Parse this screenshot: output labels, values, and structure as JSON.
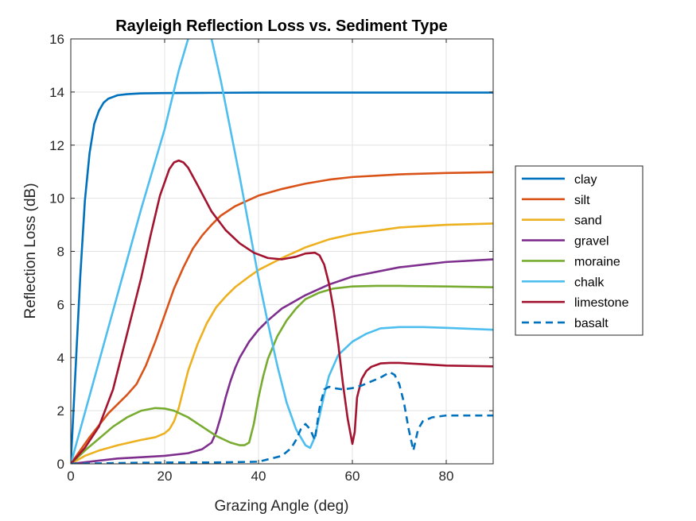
{
  "chart_data": {
    "type": "line",
    "title": "Rayleigh Reflection Loss vs. Sediment Type",
    "xlabel": "Grazing Angle (deg)",
    "ylabel": "Reflection Loss (dB)",
    "xlim": [
      0,
      90
    ],
    "ylim": [
      0,
      16
    ],
    "xticks": [
      0,
      20,
      40,
      60,
      80
    ],
    "yticks": [
      0,
      2,
      4,
      6,
      8,
      10,
      12,
      14,
      16
    ],
    "grid": true,
    "legend_position": "outside-right",
    "series": [
      {
        "name": "clay",
        "color": "#0072BD",
        "dash": "solid",
        "x": [
          0,
          1,
          2,
          3,
          4,
          5,
          6,
          7,
          8,
          10,
          12,
          15,
          20,
          30,
          40,
          60,
          90
        ],
        "y": [
          0,
          3.5,
          7.0,
          9.9,
          11.7,
          12.8,
          13.3,
          13.6,
          13.75,
          13.88,
          13.92,
          13.95,
          13.96,
          13.97,
          13.98,
          13.98,
          13.98
        ]
      },
      {
        "name": "silt",
        "color": "#D95319",
        "dash": "solid",
        "x": [
          0,
          2,
          4,
          6,
          8,
          10,
          12,
          14,
          16,
          18,
          20,
          22,
          24,
          26,
          28,
          30,
          32,
          35,
          40,
          45,
          50,
          55,
          60,
          70,
          80,
          90
        ],
        "y": [
          0,
          0.5,
          1.0,
          1.45,
          1.9,
          2.25,
          2.6,
          3.0,
          3.7,
          4.6,
          5.6,
          6.6,
          7.4,
          8.1,
          8.6,
          9.0,
          9.35,
          9.7,
          10.1,
          10.35,
          10.55,
          10.7,
          10.8,
          10.9,
          10.95,
          10.98
        ]
      },
      {
        "name": "sand",
        "color": "#EDB120",
        "dash": "solid",
        "x": [
          0,
          3,
          6,
          10,
          15,
          18,
          20,
          21,
          22,
          23,
          24,
          25,
          27,
          29,
          31,
          33,
          35,
          38,
          40,
          45,
          50,
          55,
          60,
          70,
          80,
          90
        ],
        "y": [
          0,
          0.3,
          0.5,
          0.7,
          0.9,
          1.0,
          1.15,
          1.3,
          1.6,
          2.1,
          2.8,
          3.5,
          4.5,
          5.3,
          5.9,
          6.3,
          6.65,
          7.05,
          7.3,
          7.75,
          8.15,
          8.45,
          8.65,
          8.9,
          9.0,
          9.05
        ]
      },
      {
        "name": "gravel",
        "color": "#7E2F8E",
        "dash": "solid",
        "x": [
          0,
          5,
          10,
          15,
          20,
          25,
          28,
          30,
          31,
          32,
          33,
          34,
          35,
          36,
          38,
          40,
          42,
          45,
          50,
          55,
          60,
          70,
          80,
          90
        ],
        "y": [
          0,
          0.1,
          0.2,
          0.25,
          0.3,
          0.4,
          0.55,
          0.8,
          1.2,
          1.8,
          2.5,
          3.1,
          3.6,
          4.0,
          4.6,
          5.05,
          5.4,
          5.85,
          6.35,
          6.75,
          7.05,
          7.4,
          7.6,
          7.7
        ]
      },
      {
        "name": "moraine",
        "color": "#77AC30",
        "dash": "solid",
        "x": [
          0,
          3,
          6,
          9,
          12,
          15,
          18,
          20,
          22,
          25,
          28,
          31,
          34,
          36,
          37,
          38,
          39,
          40,
          41,
          42,
          44,
          46,
          48,
          50,
          53,
          56,
          60,
          65,
          70,
          80,
          90
        ],
        "y": [
          0,
          0.5,
          0.95,
          1.4,
          1.75,
          2.0,
          2.1,
          2.08,
          2.0,
          1.75,
          1.4,
          1.05,
          0.8,
          0.7,
          0.7,
          0.8,
          1.5,
          2.5,
          3.3,
          3.95,
          4.8,
          5.4,
          5.85,
          6.2,
          6.45,
          6.6,
          6.68,
          6.7,
          6.7,
          6.68,
          6.65
        ]
      },
      {
        "name": "chalk",
        "color": "#4DBEEE",
        "dash": "solid",
        "x": [
          0,
          5,
          10,
          15,
          20,
          23,
          25,
          26,
          29,
          30,
          32,
          34,
          36,
          38,
          40,
          42,
          44,
          46,
          48,
          50,
          51,
          52,
          53,
          54,
          55,
          57,
          60,
          63,
          66,
          70,
          75,
          80,
          90
        ],
        "y": [
          0,
          3.2,
          6.4,
          9.6,
          12.6,
          14.8,
          16.0,
          16.7,
          16.7,
          16.0,
          14.4,
          12.6,
          10.8,
          8.9,
          7.0,
          5.3,
          3.7,
          2.3,
          1.3,
          0.7,
          0.6,
          1.0,
          1.8,
          2.6,
          3.3,
          4.1,
          4.6,
          4.9,
          5.1,
          5.15,
          5.15,
          5.12,
          5.05
        ]
      },
      {
        "name": "limestone",
        "color": "#A2142F",
        "dash": "solid",
        "x": [
          0,
          3,
          6,
          9,
          12,
          15,
          17,
          19,
          21,
          22,
          23,
          24,
          25,
          27,
          30,
          33,
          36,
          39,
          42,
          45,
          48,
          50,
          52,
          53,
          54,
          55,
          56,
          57,
          58,
          59,
          60,
          60.5,
          61,
          62,
          63,
          64,
          66,
          68,
          70,
          75,
          80,
          90
        ],
        "y": [
          0,
          0.6,
          1.4,
          2.8,
          4.9,
          7.0,
          8.6,
          10.1,
          11.1,
          11.35,
          11.42,
          11.35,
          11.15,
          10.5,
          9.5,
          8.8,
          8.3,
          7.95,
          7.75,
          7.7,
          7.8,
          7.92,
          7.95,
          7.85,
          7.5,
          6.8,
          5.8,
          4.5,
          3.0,
          1.7,
          0.75,
          1.2,
          2.5,
          3.2,
          3.5,
          3.65,
          3.78,
          3.8,
          3.8,
          3.75,
          3.7,
          3.67
        ]
      },
      {
        "name": "basalt",
        "color": "#0072BD",
        "dash": "dashed",
        "x": [
          0,
          10,
          20,
          30,
          40,
          45,
          47,
          48,
          49,
          50,
          51,
          52,
          53,
          54,
          55,
          56,
          58,
          60,
          62,
          64,
          66,
          68,
          69,
          70,
          71,
          72,
          73,
          74,
          75,
          77,
          80,
          90
        ],
        "y": [
          0,
          0.03,
          0.05,
          0.05,
          0.08,
          0.3,
          0.6,
          0.9,
          1.3,
          1.5,
          1.3,
          0.9,
          2.1,
          2.8,
          2.9,
          2.85,
          2.8,
          2.85,
          2.95,
          3.1,
          3.25,
          3.45,
          3.35,
          3.0,
          2.3,
          1.3,
          0.5,
          1.3,
          1.6,
          1.75,
          1.82,
          1.82
        ]
      }
    ]
  }
}
